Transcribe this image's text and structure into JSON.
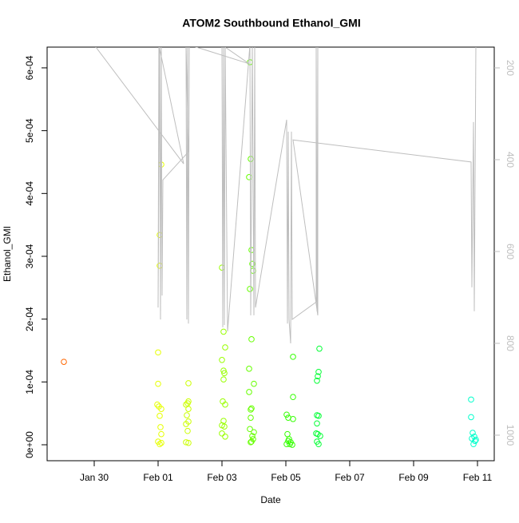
{
  "chart_data": {
    "type": "scatter",
    "title": "ATOM2 Southbound Ethanol_GMI",
    "x_label": "Date",
    "y_label": "Ethanol_GMI",
    "xlim": [
      28.525,
      42.525
    ],
    "xticks": [
      {
        "value": 30,
        "label": "Jan 30"
      },
      {
        "value": 32,
        "label": "Feb 01"
      },
      {
        "value": 34,
        "label": "Feb 03"
      },
      {
        "value": 36,
        "label": "Feb 05"
      },
      {
        "value": 38,
        "label": "Feb 07"
      },
      {
        "value": 40,
        "label": "Feb 09"
      },
      {
        "value": 42,
        "label": "Feb 11"
      }
    ],
    "ylim": [
      -2.54e-05,
      0.000633
    ],
    "yticks": [
      {
        "value": 0,
        "label": "0e+00"
      },
      {
        "value": 0.0001,
        "label": "1e-04"
      },
      {
        "value": 0.0002,
        "label": "2e-04"
      },
      {
        "value": 0.0003,
        "label": "3e-04"
      },
      {
        "value": 0.0004,
        "label": "4e-04"
      },
      {
        "value": 0.0005,
        "label": "5e-04"
      },
      {
        "value": 0.0006,
        "label": "6e-04"
      }
    ],
    "y2lim": [
      1055.7,
      154.8
    ],
    "y2ticks": [
      200,
      400,
      600,
      800,
      1000
    ],
    "y2_color": "#bebebe",
    "series": [
      {
        "x": [
          29.05,
          32.1,
          32.05,
          32.05,
          32.0,
          32.0,
          31.975,
          32.025,
          32.1,
          32.05,
          32.075,
          32.1,
          32.0,
          32.1,
          32.05,
          32.95,
          32.95,
          32.925,
          32.875,
          32.95,
          32.9,
          32.95,
          32.875,
          32.925,
          32.875,
          32.95,
          34.0,
          34.05,
          34.1,
          34.0,
          34.05,
          34.075,
          34.05,
          34.025,
          34.1,
          34.05,
          34.0,
          34.075,
          34.0,
          34.1,
          34.875,
          34.9,
          34.85,
          34.925,
          34.95,
          34.975,
          34.875,
          34.925,
          34.85,
          35.0,
          34.85,
          34.925,
          34.9,
          34.9,
          34.875,
          35.0,
          34.95,
          34.975,
          34.925,
          34.9,
          36.225,
          36.225,
          36.025,
          36.075,
          36.225,
          36.05,
          36.1,
          36.075,
          36.15,
          36.125,
          36.2,
          36.025,
          37.05,
          37.025,
          37.0,
          36.975,
          36.975,
          37.025,
          36.975,
          36.95,
          37.0,
          37.075,
          36.975,
          37.025,
          41.8,
          41.8,
          41.85,
          41.9,
          41.825,
          41.925,
          41.875,
          41.95
        ],
        "values": [
          0.000132,
          0.000446,
          0.000334,
          0.000285,
          0.000147,
          9.7e-05,
          6.4e-05,
          6.1e-05,
          5.7e-05,
          4.6e-05,
          2.8e-05,
          1.7e-05,
          5e-06,
          3e-06,
          1e-06,
          9.8e-05,
          6.9e-05,
          6.6e-05,
          6.4e-05,
          5.7e-05,
          4.7e-05,
          3.7e-05,
          3.3e-05,
          2.2e-05,
          4e-06,
          3e-06,
          0.000282,
          0.00018,
          0.000155,
          0.000135,
          0.000118,
          0.000114,
          0.000104,
          6.9e-05,
          6.4e-05,
          3.8e-05,
          3.1e-05,
          2.9e-05,
          1.8e-05,
          1.3e-05,
          0.000609,
          0.000455,
          0.000426,
          0.00031,
          0.000288,
          0.000277,
          0.000248,
          0.000168,
          0.000121,
          9.7e-05,
          8.4e-05,
          5.8e-05,
          5.6e-05,
          4.3e-05,
          2.5e-05,
          2e-05,
          1.4e-05,
          9e-06,
          5e-06,
          4e-06,
          0.00014,
          7.6e-05,
          4.8e-05,
          4.3e-05,
          4.1e-05,
          1.7e-05,
          9e-06,
          6e-06,
          4e-06,
          1e-06,
          0,
          1e-06,
          0.000153,
          0.000116,
          0.000109,
          0.000102,
          4.7e-05,
          4.6e-05,
          3.4e-05,
          1.8e-05,
          1.7e-05,
          1.4e-05,
          5e-06,
          1e-06,
          7.2e-05,
          4.4e-05,
          1.9e-05,
          1.3e-05,
          1e-05,
          6e-06,
          1e-06,
          8e-06
        ],
        "colors": [
          "#ff6600",
          "#e6ff00",
          "#e6ff00",
          "#e6ff00",
          "#e6ff00",
          "#e6ff00",
          "#e6ff00",
          "#e6ff00",
          "#e6ff00",
          "#e6ff00",
          "#e6ff00",
          "#e6ff00",
          "#e6ff00",
          "#e6ff00",
          "#e6ff00",
          "#ccff00",
          "#ccff00",
          "#ccff00",
          "#ccff00",
          "#ccff00",
          "#ccff00",
          "#ccff00",
          "#ccff00",
          "#ccff00",
          "#ccff00",
          "#ccff00",
          "#99ff00",
          "#99ff00",
          "#99ff00",
          "#99ff00",
          "#99ff00",
          "#99ff00",
          "#99ff00",
          "#99ff00",
          "#99ff00",
          "#99ff00",
          "#99ff00",
          "#99ff00",
          "#99ff00",
          "#99ff00",
          "#66ff00",
          "#66ff00",
          "#66ff00",
          "#66ff00",
          "#66ff00",
          "#66ff00",
          "#66ff00",
          "#66ff00",
          "#66ff00",
          "#66ff00",
          "#66ff00",
          "#66ff00",
          "#66ff00",
          "#66ff00",
          "#66ff00",
          "#66ff00",
          "#66ff00",
          "#66ff00",
          "#66ff00",
          "#66ff00",
          "#33ff00",
          "#33ff00",
          "#33ff00",
          "#33ff00",
          "#33ff00",
          "#33ff00",
          "#33ff00",
          "#33ff00",
          "#33ff00",
          "#33ff00",
          "#33ff00",
          "#33ff00",
          "#00ff33",
          "#00ff33",
          "#00ff33",
          "#00ff33",
          "#00ff33",
          "#00ff33",
          "#00ff33",
          "#00ff33",
          "#00ff33",
          "#00ff33",
          "#00ff33",
          "#00ff33",
          "#00ffcc",
          "#00ffcc",
          "#00ffcc",
          "#00ffcc",
          "#00ffcc",
          "#00ffcc",
          "#00ffcc",
          "#00ffcc"
        ]
      },
      {
        "axis": "y2",
        "style": "line",
        "color": "#bebebe",
        "x": [
          30.0,
          32.8,
          32.025,
          32.0,
          32.05,
          32.075,
          32.1,
          32.125,
          32.15,
          32.95,
          32.875,
          32.9,
          32.925,
          32.95,
          32.975,
          34.85,
          34.0,
          34.025,
          34.05,
          34.075,
          34.1,
          34.175,
          34.875,
          34.9,
          34.95,
          35.0,
          35.025,
          35.05,
          36.025,
          36.05,
          36.075,
          36.1,
          36.15,
          36.175,
          36.2,
          36.95,
          36.95,
          36.975,
          37.0,
          37.0,
          36.225,
          41.8,
          41.825,
          41.875,
          41.9,
          41.95,
          41.975
        ],
        "values": [
          150,
          409,
          150,
          722,
          150,
          748,
          150,
          696,
          444,
          383,
          150,
          748,
          150,
          757,
          150,
          191,
          150,
          765,
          150,
          760,
          150,
          774,
          150,
          739,
          150,
          739,
          150,
          722,
          313,
          757,
          339,
          748,
          800,
          339,
          748,
          710,
          150,
          730,
          150,
          739,
          357,
          405,
          678,
          318,
          730,
          150,
          150
        ]
      }
    ]
  }
}
